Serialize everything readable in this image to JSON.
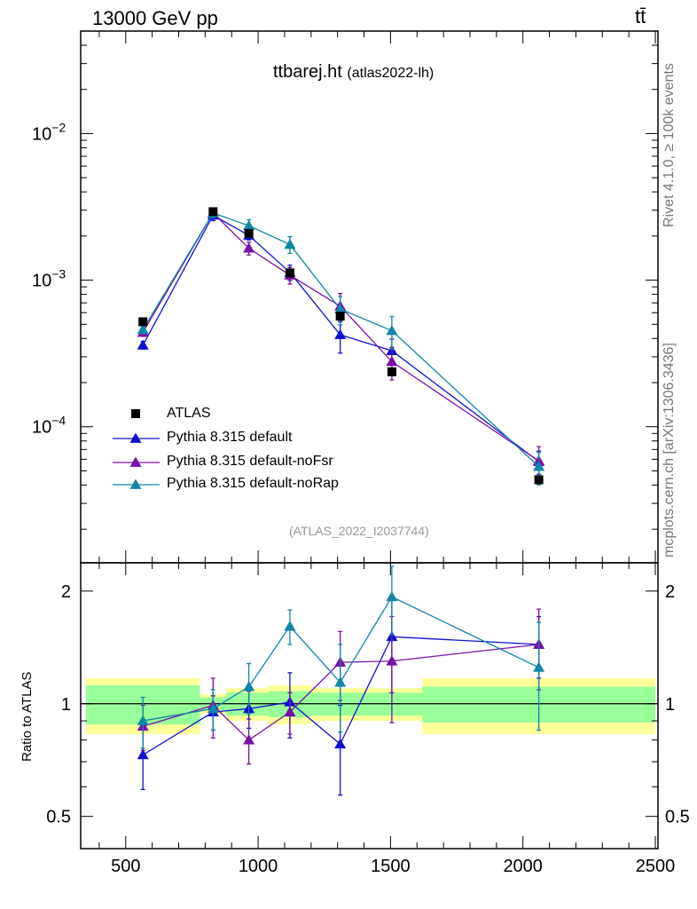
{
  "header": {
    "left": "13000 GeV pp",
    "right": "tt̄"
  },
  "side_text": {
    "rivet": "Rivet 4.1.0, ≥ 100k events",
    "mcplots": "mcplots.cern.ch [arXiv:1306.3436]"
  },
  "plot_title": {
    "name": "ttbarej.ht",
    "tag": "(atlas2022-lh)"
  },
  "reference": "(ATLAS_2022_I2037744)",
  "ratio_ylabel": "Ratio to ATLAS",
  "colors": {
    "data": "#000000",
    "default": "#1010d0",
    "noFsr": "#7a0fa8",
    "noRap": "#0f86a8",
    "band_inner": "#99ff99",
    "band_outer": "#ffff99"
  },
  "chart_data": {
    "type": "line",
    "xlim": [
      330,
      2510
    ],
    "x_ticks": [
      500,
      1000,
      1500,
      2000,
      2500
    ],
    "main": {
      "yscale": "log",
      "ylim": [
        1.18e-05,
        0.05
      ],
      "y_ticks": [
        {
          "value": 0.01,
          "base": "10",
          "exp": "−2"
        },
        {
          "value": 0.001,
          "base": "10",
          "exp": "−3"
        },
        {
          "value": 0.0001,
          "base": "10",
          "exp": "−4"
        }
      ]
    },
    "ratio": {
      "yscale": "log",
      "ylim": [
        0.41,
        2.38
      ],
      "y_ticks": [
        0.5,
        1,
        2
      ]
    },
    "bins": [
      [
        350,
        780
      ],
      [
        780,
        880
      ],
      [
        880,
        1040
      ],
      [
        1040,
        1200
      ],
      [
        1200,
        1420
      ],
      [
        1420,
        1620
      ],
      [
        1620,
        2500
      ]
    ],
    "band_inner": [
      0.12,
      0.04,
      0.07,
      0.08,
      0.07,
      0.07,
      0.11
    ],
    "band_outer": [
      0.17,
      0.06,
      0.1,
      0.12,
      0.1,
      0.1,
      0.17
    ],
    "data": {
      "name": "ATLAS",
      "x": [
        565,
        830,
        965,
        1120,
        1310,
        1505,
        2060
      ],
      "y": [
        0.00052,
        0.00293,
        0.00208,
        0.00112,
        0.000568,
        0.000237,
        4.35e-05
      ]
    },
    "series": [
      {
        "name": "Pythia 8.315 default",
        "key": "default",
        "x": [
          565,
          830,
          965,
          1120,
          1310,
          1505,
          2060
        ],
        "y": [
          0.00036,
          0.00277,
          0.00202,
          0.00113,
          0.000424,
          0.00033,
          5.78e-05
        ],
        "err": [
          0.06,
          0.08,
          0.07,
          0.12,
          0.25,
          0.2,
          0.18
        ],
        "ratio": [
          0.73,
          0.95,
          0.97,
          1.01,
          0.78,
          1.51,
          1.44
        ],
        "ratio_err": [
          0.14,
          0.1,
          0.11,
          0.2,
          0.21,
          0.44,
          0.27
        ]
      },
      {
        "name": "Pythia 8.315 default-noFsr",
        "key": "noFsr",
        "x": [
          565,
          830,
          965,
          1120,
          1310,
          1505,
          2060
        ],
        "y": [
          0.00044,
          0.00287,
          0.00165,
          0.00108,
          0.000665,
          0.000278,
          5.85e-05
        ],
        "err": [
          0.06,
          0.07,
          0.1,
          0.13,
          0.22,
          0.25,
          0.25
        ],
        "ratio": [
          0.87,
          0.99,
          0.8,
          0.95,
          1.29,
          1.3,
          1.44
        ],
        "ratio_err": [
          0.12,
          0.18,
          0.11,
          0.12,
          0.27,
          0.41,
          0.35
        ]
      },
      {
        "name": "Pythia 8.315 default-noRap",
        "key": "noRap",
        "x": [
          565,
          830,
          965,
          1120,
          1310,
          1505,
          2060
        ],
        "y": [
          0.00046,
          0.00287,
          0.00235,
          0.00175,
          0.000635,
          0.000452,
          5.35e-05
        ],
        "err": [
          0.06,
          0.07,
          0.1,
          0.13,
          0.22,
          0.25,
          0.25
        ],
        "ratio": [
          0.9,
          0.97,
          1.11,
          1.61,
          1.14,
          1.93,
          1.25
        ],
        "ratio_err": [
          0.14,
          0.12,
          0.17,
          0.17,
          0.3,
          0.4,
          0.4
        ]
      }
    ]
  }
}
